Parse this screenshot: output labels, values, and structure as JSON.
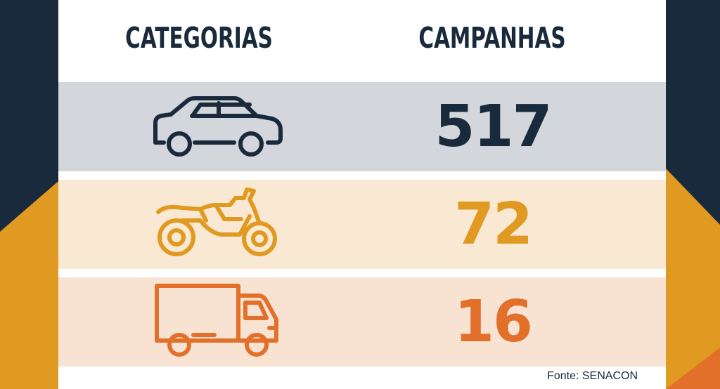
{
  "header": {
    "categories_label": "CATEGORIAS",
    "campaigns_label": "CAMPANHAS"
  },
  "rows": [
    {
      "category_icon": "car-icon",
      "value": "517",
      "color": "#182a3c"
    },
    {
      "category_icon": "motorcycle-icon",
      "value": "72",
      "color": "#e09a21"
    },
    {
      "category_icon": "truck-icon",
      "value": "16",
      "color": "#e2702a"
    }
  ],
  "source": "Fonte: SENACON",
  "colors": {
    "navy": "#182a3c",
    "gold": "#e09a21",
    "orange": "#e2702a",
    "row_car_bg": "#d3d6db",
    "row_moto_bg": "#f9e8d2",
    "row_truck_bg": "#f8e3d3"
  }
}
